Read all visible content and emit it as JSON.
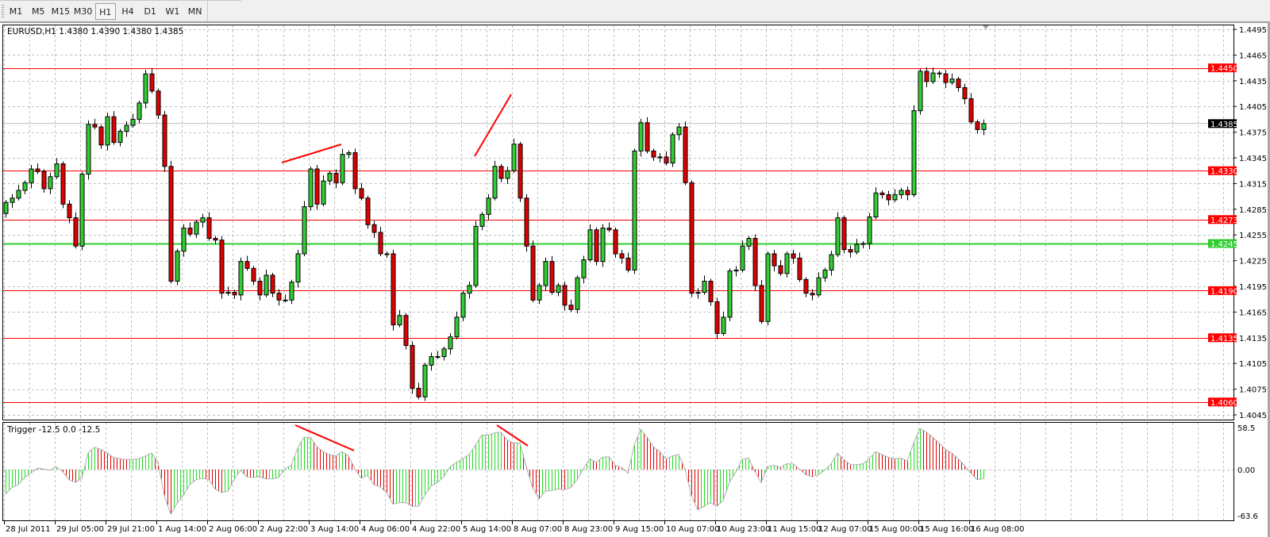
{
  "toolbar": {
    "timeframes": [
      "M1",
      "M5",
      "M15",
      "M30",
      "H1",
      "H4",
      "D1",
      "W1",
      "MN"
    ],
    "active": "H1"
  },
  "chart": {
    "header": "EURUSD,H1  1.4380 1.4390 1.4380 1.4385",
    "symbol": "EURUSD",
    "timeframe": "H1",
    "ohlc_last": {
      "open": 1.438,
      "high": 1.439,
      "low": 1.438,
      "close": 1.4385
    },
    "bid_label": "1.4385",
    "price_ticks": [
      "1.4495",
      "1.4465",
      "1.4435",
      "1.4405",
      "1.4375",
      "1.4345",
      "1.4315",
      "1.4285",
      "1.4255",
      "1.4225",
      "1.4195",
      "1.4165",
      "1.4135",
      "1.4105",
      "1.4075",
      "1.4045"
    ],
    "levels": [
      {
        "price": "1.4450",
        "color": "#ff0000"
      },
      {
        "price": "1.4330",
        "color": "#ff0000"
      },
      {
        "price": "1.4273",
        "color": "#ff0000"
      },
      {
        "price": "1.4245",
        "color": "#32cd32"
      },
      {
        "price": "1.4190",
        "color": "#ff0000"
      },
      {
        "price": "1.4135",
        "color": "#ff0000"
      },
      {
        "price": "1.4060",
        "color": "#ff0000"
      }
    ],
    "time_labels": [
      "28 Jul 2011",
      "29 Jul 05:00",
      "29 Jul 21:00",
      "1 Aug 14:00",
      "2 Aug 06:00",
      "2 Aug 22:00",
      "3 Aug 14:00",
      "4 Aug 06:00",
      "4 Aug 22:00",
      "5 Aug 14:00",
      "8 Aug 07:00",
      "8 Aug 23:00",
      "9 Aug 15:00",
      "10 Aug 07:00",
      "10 Aug 23:00",
      "11 Aug 15:00",
      "12 Aug 07:00",
      "15 Aug 00:00",
      "15 Aug 16:00",
      "16 Aug 08:00"
    ],
    "colors": {
      "bull": "#32cd32",
      "bear": "#e00000",
      "grid": "#c0c0c0",
      "bid_line": "#c0c0c0",
      "trendline": "#ff0000"
    }
  },
  "indicator": {
    "label": "Trigger -12.5 0.0 -12.5",
    "axis_labels": [
      "58.5",
      "0.00",
      "-63.6"
    ],
    "colors": {
      "up": "#22dd22",
      "down": "#e00000",
      "line": "#b0b0b0"
    }
  },
  "chart_data": [
    {
      "type": "candlestick",
      "title": "EURUSD,H1",
      "ylim": [
        1.4045,
        1.4495
      ],
      "grid": true,
      "first_open": 1.428,
      "close": [
        1.4293,
        1.4298,
        1.4307,
        1.4316,
        1.4332,
        1.4329,
        1.4309,
        1.4323,
        1.4338,
        1.4291,
        1.4275,
        1.4242,
        1.4326,
        1.4384,
        1.4381,
        1.436,
        1.4393,
        1.4363,
        1.4376,
        1.4383,
        1.439,
        1.4409,
        1.4443,
        1.4423,
        1.4395,
        1.4335,
        1.4201,
        1.4236,
        1.4263,
        1.4256,
        1.427,
        1.4275,
        1.4251,
        1.4249,
        1.4187,
        1.4188,
        1.4185,
        1.4224,
        1.4216,
        1.4201,
        1.4185,
        1.4208,
        1.4187,
        1.4179,
        1.4179,
        1.42,
        1.4233,
        1.4288,
        1.4332,
        1.4291,
        1.4318,
        1.4327,
        1.4316,
        1.4349,
        1.4351,
        1.4309,
        1.4298,
        1.4267,
        1.4258,
        1.4233,
        1.4233,
        1.415,
        1.4161,
        1.4126,
        1.4076,
        1.4066,
        1.4103,
        1.4113,
        1.4113,
        1.4122,
        1.4136,
        1.4159,
        1.4187,
        1.4196,
        1.4265,
        1.4279,
        1.4298,
        1.4335,
        1.4321,
        1.433,
        1.4361,
        1.4298,
        1.4242,
        1.4179,
        1.4196,
        1.4224,
        1.4188,
        1.4196,
        1.4173,
        1.4168,
        1.4205,
        1.4226,
        1.4261,
        1.4224,
        1.4263,
        1.4261,
        1.4233,
        1.4228,
        1.4214,
        1.4353,
        1.4386,
        1.4353,
        1.4346,
        1.4346,
        1.4339,
        1.4372,
        1.4381,
        1.4316,
        1.4187,
        1.4188,
        1.4201,
        1.4177,
        1.414,
        1.4159,
        1.4213,
        1.4214,
        1.4242,
        1.4251,
        1.4196,
        1.4154,
        1.4233,
        1.4219,
        1.421,
        1.4233,
        1.4228,
        1.4203,
        1.4187,
        1.4185,
        1.4205,
        1.4214,
        1.4232,
        1.4275,
        1.4238,
        1.4235,
        1.4244,
        1.4245,
        1.4276,
        1.4304,
        1.4302,
        1.4296,
        1.4302,
        1.4307,
        1.4302,
        1.44,
        1.4446,
        1.4434,
        1.4444,
        1.4443,
        1.4433,
        1.4437,
        1.4427,
        1.4414,
        1.4387,
        1.4378,
        1.4385
      ]
    },
    {
      "type": "bar",
      "title": "Trigger",
      "ylim": [
        -63.6,
        58.5
      ],
      "values": [
        -34,
        -25,
        -21,
        -11,
        -5,
        2,
        1,
        -1,
        4,
        -3,
        -14,
        -18,
        -12,
        23,
        31,
        28,
        23,
        17,
        15,
        14,
        14,
        15,
        19,
        23,
        10,
        -36,
        -62,
        -47,
        -36,
        -21,
        -14,
        -12,
        -14,
        -27,
        -32,
        -30,
        -14,
        -1,
        -10,
        -11,
        -10,
        -13,
        -13,
        -11,
        1,
        6,
        30,
        45,
        45,
        32,
        25,
        21,
        19,
        25,
        19,
        1,
        -12,
        -8,
        -21,
        -24,
        -32,
        -48,
        -46,
        -46,
        -51,
        -51,
        -36,
        -23,
        -18,
        -10,
        4,
        10,
        15,
        21,
        34,
        48,
        48,
        51,
        52,
        41,
        37,
        37,
        4,
        -25,
        -41,
        -30,
        -29,
        -27,
        -28,
        -25,
        -14,
        1,
        15,
        10,
        17,
        18,
        6,
        3,
        -5,
        34,
        56,
        45,
        32,
        25,
        15,
        19,
        21,
        1,
        -36,
        -56,
        -51,
        -46,
        -51,
        -43,
        -18,
        -3,
        14,
        16,
        -3,
        -18,
        4,
        6,
        3,
        8,
        8,
        1,
        -7,
        -10,
        -7,
        -1,
        8,
        23,
        14,
        7,
        7,
        8,
        15,
        25,
        21,
        17,
        15,
        16,
        12,
        37,
        57,
        52,
        45,
        37,
        28,
        23,
        15,
        6,
        -5,
        -14,
        -12.5
      ]
    }
  ]
}
